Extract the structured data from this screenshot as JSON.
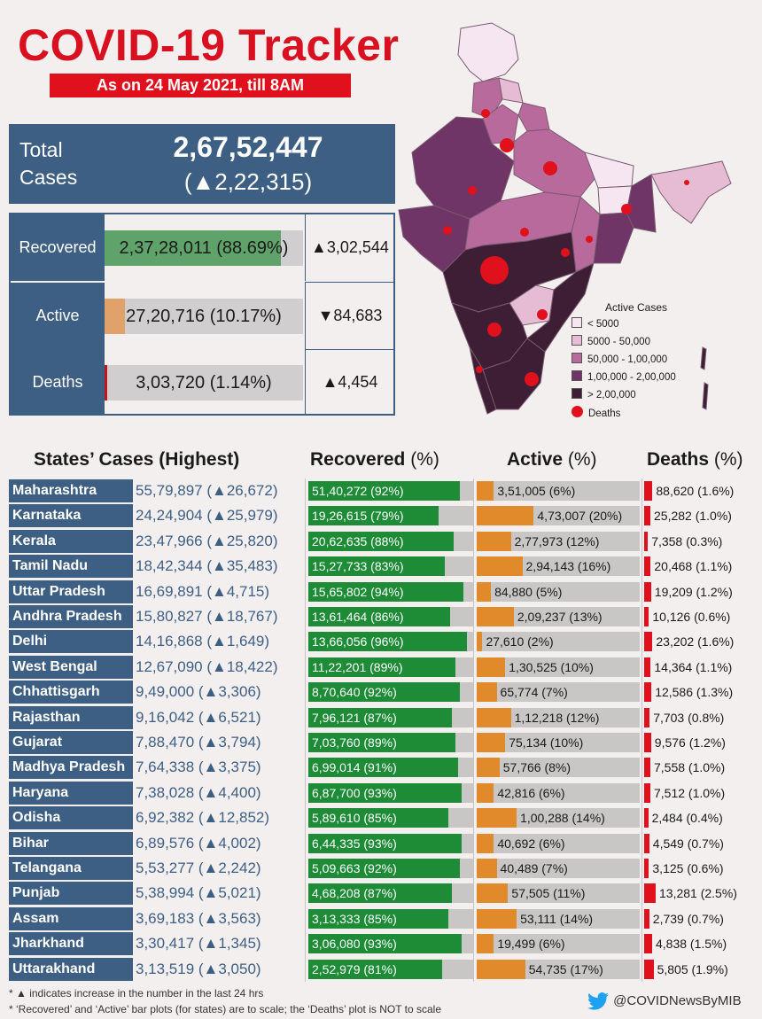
{
  "header": {
    "title": "COVID-19 Tracker",
    "subtitle": "As on 24 May 2021, till 8AM"
  },
  "total": {
    "label": "Total Cases",
    "value": "2,67,52,447",
    "delta": "(▲2,22,315)"
  },
  "summary": [
    {
      "label": "Recovered",
      "text": "2,37,28,011 (88.69%)",
      "fraction": 0.8869,
      "color": "#5fa36a",
      "delta": "▲3,02,544"
    },
    {
      "label": "Active",
      "text": "27,20,716 (10.17%)",
      "fraction": 0.1017,
      "color": "#e0a26a",
      "delta": "▼84,683"
    },
    {
      "label": "Deaths",
      "text": "3,03,720 (1.14%)",
      "fraction": 0.0114,
      "color": "#c4161f",
      "delta": "▲4,454"
    }
  ],
  "map_legend": {
    "title": "Active Cases",
    "items": [
      {
        "label": "< 5000",
        "color": "#f6e6f1"
      },
      {
        "label": "5000 - 50,000",
        "color": "#e6bcd5"
      },
      {
        "label": "50,000 - 1,00,000",
        "color": "#b86a9c"
      },
      {
        "label": "1,00,000 - 2,00,000",
        "color": "#6e3566"
      },
      {
        "label": "> 2,00,000",
        "color": "#3d1e35"
      }
    ],
    "deaths_label": "Deaths"
  },
  "columns": {
    "states": "States’ Cases (Highest)",
    "recovered": "Recovered",
    "active": "Active",
    "deaths": "Deaths",
    "pct": "(%)"
  },
  "states": [
    {
      "name": "Maharashtra",
      "cases": "55,79,897 (▲26,672)",
      "recovered": "51,40,272 (92%)",
      "rec_pct": 92,
      "active": "3,51,005 (6%)",
      "act_pct": 6,
      "deaths": "88,620 (1.6%)",
      "death_pct": 1.6
    },
    {
      "name": "Karnataka",
      "cases": "24,24,904 (▲25,979)",
      "recovered": "19,26,615 (79%)",
      "rec_pct": 79,
      "active": "4,73,007 (20%)",
      "act_pct": 20,
      "deaths": "25,282 (1.0%)",
      "death_pct": 1.0
    },
    {
      "name": "Kerala",
      "cases": "23,47,966 (▲25,820)",
      "recovered": "20,62,635 (88%)",
      "rec_pct": 88,
      "active": "2,77,973 (12%)",
      "act_pct": 12,
      "deaths": "7,358 (0.3%)",
      "death_pct": 0.3
    },
    {
      "name": "Tamil Nadu",
      "cases": "18,42,344 (▲35,483)",
      "recovered": "15,27,733 (83%)",
      "rec_pct": 83,
      "active": "2,94,143 (16%)",
      "act_pct": 16,
      "deaths": "20,468 (1.1%)",
      "death_pct": 1.1
    },
    {
      "name": "Uttar Pradesh",
      "cases": "16,69,891 (▲4,715)",
      "recovered": "15,65,802 (94%)",
      "rec_pct": 94,
      "active": "84,880 (5%)",
      "act_pct": 5,
      "deaths": "19,209 (1.2%)",
      "death_pct": 1.2
    },
    {
      "name": "Andhra Pradesh",
      "cases": "15,80,827 (▲18,767)",
      "recovered": "13,61,464 (86%)",
      "rec_pct": 86,
      "active": "2,09,237 (13%)",
      "act_pct": 13,
      "deaths": "10,126 (0.6%)",
      "death_pct": 0.6
    },
    {
      "name": "Delhi",
      "cases": "14,16,868 (▲1,649)",
      "recovered": "13,66,056 (96%)",
      "rec_pct": 96,
      "active": "27,610 (2%)",
      "act_pct": 2,
      "deaths": "23,202 (1.6%)",
      "death_pct": 1.6
    },
    {
      "name": "West Bengal",
      "cases": "12,67,090 (▲18,422)",
      "recovered": "11,22,201 (89%)",
      "rec_pct": 89,
      "active": "1,30,525 (10%)",
      "act_pct": 10,
      "deaths": "14,364 (1.1%)",
      "death_pct": 1.1
    },
    {
      "name": "Chhattisgarh",
      "cases": "9,49,000 (▲3,306)",
      "recovered": "8,70,640 (92%)",
      "rec_pct": 92,
      "active": "65,774 (7%)",
      "act_pct": 7,
      "deaths": "12,586 (1.3%)",
      "death_pct": 1.3
    },
    {
      "name": "Rajasthan",
      "cases": "9,16,042 (▲6,521)",
      "recovered": "7,96,121 (87%)",
      "rec_pct": 87,
      "active": "1,12,218 (12%)",
      "act_pct": 12,
      "deaths": "7,703 (0.8%)",
      "death_pct": 0.8
    },
    {
      "name": "Gujarat",
      "cases": "7,88,470 (▲3,794)",
      "recovered": "7,03,760 (89%)",
      "rec_pct": 89,
      "active": "75,134 (10%)",
      "act_pct": 10,
      "deaths": "9,576 (1.2%)",
      "death_pct": 1.2
    },
    {
      "name": "Madhya Pradesh",
      "cases": "7,64,338 (▲3,375)",
      "recovered": "6,99,014 (91%)",
      "rec_pct": 91,
      "active": "57,766 (8%)",
      "act_pct": 8,
      "deaths": "7,558 (1.0%)",
      "death_pct": 1.0
    },
    {
      "name": "Haryana",
      "cases": "7,38,028 (▲4,400)",
      "recovered": "6,87,700 (93%)",
      "rec_pct": 93,
      "active": "42,816 (6%)",
      "act_pct": 6,
      "deaths": "7,512 (1.0%)",
      "death_pct": 1.0
    },
    {
      "name": "Odisha",
      "cases": "6,92,382 (▲12,852)",
      "recovered": "5,89,610 (85%)",
      "rec_pct": 85,
      "active": "1,00,288 (14%)",
      "act_pct": 14,
      "deaths": "2,484 (0.4%)",
      "death_pct": 0.4
    },
    {
      "name": "Bihar",
      "cases": "6,89,576 (▲4,002)",
      "recovered": "6,44,335 (93%)",
      "rec_pct": 93,
      "active": "40,692 (6%)",
      "act_pct": 6,
      "deaths": "4,549 (0.7%)",
      "death_pct": 0.7
    },
    {
      "name": "Telangana",
      "cases": "5,53,277 (▲2,242)",
      "recovered": "5,09,663 (92%)",
      "rec_pct": 92,
      "active": "40,489 (7%)",
      "act_pct": 7,
      "deaths": "3,125 (0.6%)",
      "death_pct": 0.6
    },
    {
      "name": "Punjab",
      "cases": "5,38,994 (▲5,021)",
      "recovered": "4,68,208 (87%)",
      "rec_pct": 87,
      "active": "57,505 (11%)",
      "act_pct": 11,
      "deaths": "13,281 (2.5%)",
      "death_pct": 2.5
    },
    {
      "name": "Assam",
      "cases": "3,69,183 (▲3,563)",
      "recovered": "3,13,333 (85%)",
      "rec_pct": 85,
      "active": "53,111 (14%)",
      "act_pct": 14,
      "deaths": "2,739 (0.7%)",
      "death_pct": 0.7
    },
    {
      "name": "Jharkhand",
      "cases": "3,30,417 (▲1,345)",
      "recovered": "3,06,080 (93%)",
      "rec_pct": 93,
      "active": "19,499 (6%)",
      "act_pct": 6,
      "deaths": "4,838 (1.5%)",
      "death_pct": 1.5
    },
    {
      "name": "Uttarakhand",
      "cases": "3,13,519 (▲3,050)",
      "recovered": "2,52,979 (81%)",
      "rec_pct": 81,
      "active": "54,735 (17%)",
      "act_pct": 17,
      "deaths": "5,805 (1.9%)",
      "death_pct": 1.9
    }
  ],
  "footnotes": [
    "* ▲ indicates increase in the number in the last 24 hrs",
    "* ‘Recovered’ and ‘Active’ bar plots (for states) are to scale; the ‘Deaths’ plot is NOT to scale"
  ],
  "twitter": {
    "icon": "twitter-bird-icon",
    "handle": "@COVIDNewsByMIB",
    "color": "#1da1f2"
  }
}
